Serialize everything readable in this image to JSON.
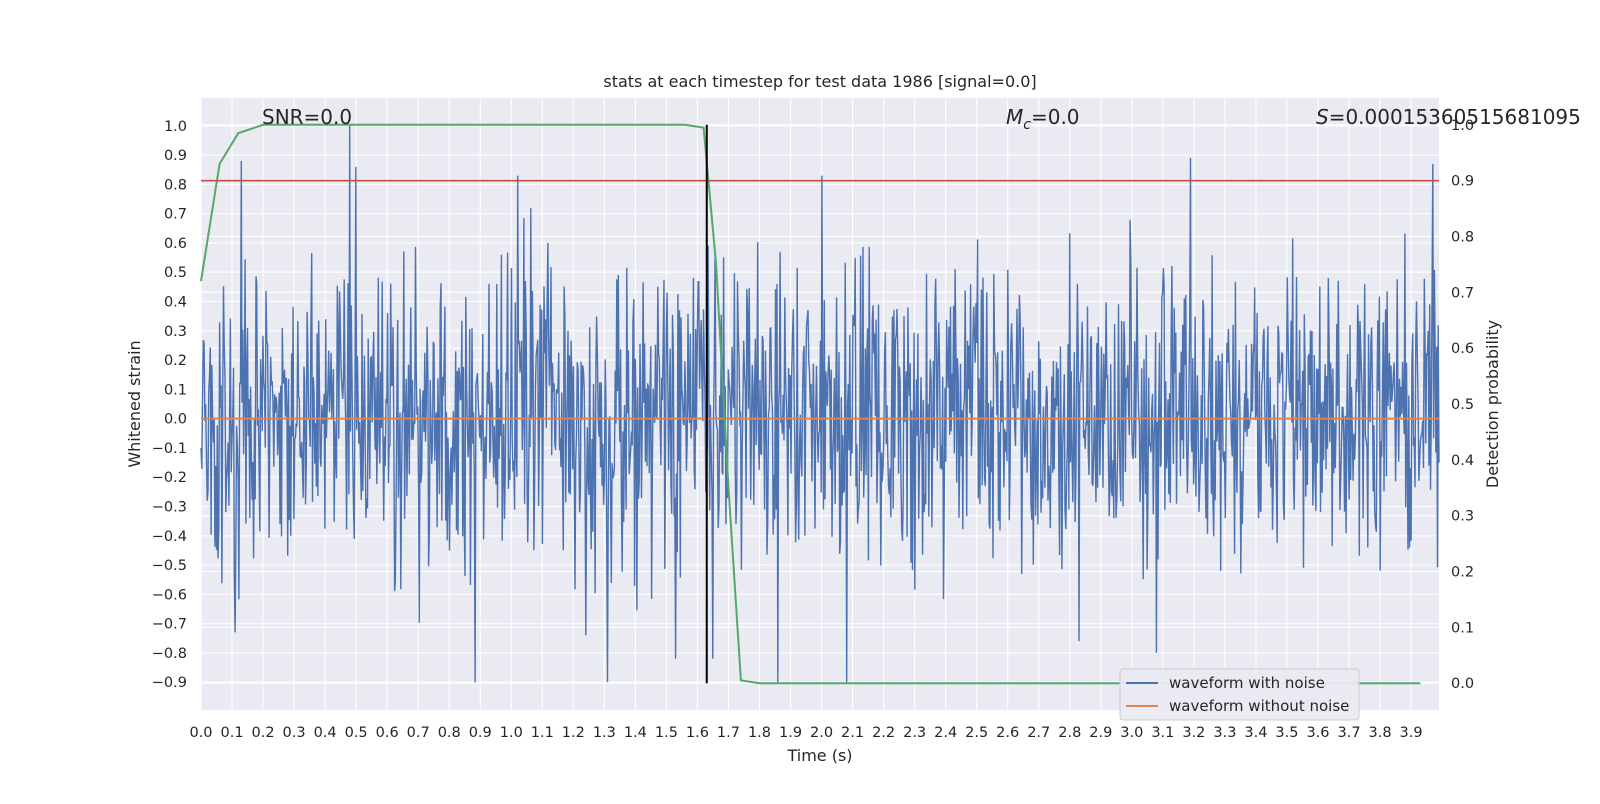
{
  "chart_data": {
    "type": "line",
    "title": "stats at each timestep for test data 1986 [signal=0.0]",
    "xlabel": "Time (s)",
    "ylabel": "Whitened strain",
    "y2label": "Detection probability",
    "xlim": [
      0.0,
      3.99
    ],
    "ylim": [
      -0.995,
      1.095
    ],
    "y2lim": [
      -0.048,
      1.048
    ],
    "x_ticks": [
      0.0,
      0.1,
      0.2,
      0.3,
      0.4,
      0.5,
      0.6,
      0.7,
      0.8,
      0.9,
      1.0,
      1.1,
      1.2,
      1.3,
      1.4,
      1.5,
      1.6,
      1.7,
      1.8,
      1.9,
      2.0,
      2.1,
      2.2,
      2.3,
      2.4,
      2.5,
      2.6,
      2.7,
      2.8,
      2.9,
      3.0,
      3.1,
      3.2,
      3.3,
      3.4,
      3.5,
      3.6,
      3.7,
      3.8,
      3.9
    ],
    "x_tick_labels": [
      "0.0",
      "0.1",
      "0.2",
      "0.3",
      "0.4",
      "0.5",
      "0.6",
      "0.7",
      "0.8",
      "0.9",
      "1.0",
      "1.1",
      "1.2",
      "1.3",
      "1.4",
      "1.5",
      "1.6",
      "1.7",
      "1.8",
      "1.9",
      "2.0",
      "2.1",
      "2.2",
      "2.3",
      "2.4",
      "2.5",
      "2.6",
      "2.7",
      "2.8",
      "2.9",
      "3.0",
      "3.1",
      "3.2",
      "3.3",
      "3.4",
      "3.5",
      "3.6",
      "3.7",
      "3.8",
      "3.9"
    ],
    "y_ticks": [
      1.0,
      0.9,
      0.8,
      0.7,
      0.6,
      0.5,
      0.4,
      0.3,
      0.2,
      0.1,
      0.0,
      -0.1,
      -0.2,
      -0.3,
      -0.4,
      -0.5,
      -0.6,
      -0.7,
      -0.8,
      -0.9
    ],
    "y_tick_labels": [
      "1.0",
      "0.9",
      "0.8",
      "0.7",
      "0.6",
      "0.5",
      "0.4",
      "0.3",
      "0.2",
      "0.1",
      "0.0",
      "−0.1",
      "−0.2",
      "−0.3",
      "−0.4",
      "−0.5",
      "−0.6",
      "−0.7",
      "−0.8",
      "−0.9"
    ],
    "y2_ticks": [
      1.0,
      0.9,
      0.8,
      0.7,
      0.6,
      0.5,
      0.4,
      0.3,
      0.2,
      0.1,
      0.0
    ],
    "y2_tick_labels": [
      "1.0",
      "0.9",
      "0.8",
      "0.7",
      "0.6",
      "0.5",
      "0.4",
      "0.3",
      "0.2",
      "0.1",
      "0.0"
    ],
    "grid": true,
    "legend_position": "bottom-right",
    "annotations": {
      "snr": "SNR=0.0",
      "mc_symbol": "M",
      "mc_subscript": "c",
      "mc_value": "=0.0",
      "s_symbol": "S",
      "s_value": "=0.00015360515681095"
    },
    "detection_threshold": 0.9,
    "peak_time": 1.63,
    "series": [
      {
        "name": "waveform with noise",
        "color": "#4c72b0",
        "axis": "left",
        "x_range": [
          0.0,
          3.99
        ],
        "sample_count": 1600,
        "approx_extremes": {
          "max": 1.0,
          "min": -0.9
        },
        "notable_peaks": [
          [
            0.48,
            1.0
          ],
          [
            0.5,
            0.86
          ],
          [
            0.13,
            0.88
          ],
          [
            1.02,
            0.83
          ],
          [
            2.0,
            0.83
          ],
          [
            3.19,
            0.89
          ],
          [
            3.97,
            0.87
          ]
        ],
        "notable_troughs": [
          [
            1.86,
            -0.9
          ],
          [
            2.08,
            -0.9
          ],
          [
            1.65,
            -0.82
          ],
          [
            1.53,
            -0.82
          ],
          [
            3.08,
            -0.8
          ],
          [
            0.11,
            -0.73
          ],
          [
            1.24,
            -0.74
          ]
        ]
      },
      {
        "name": "waveform without noise",
        "color": "#dd8452",
        "axis": "left",
        "x": [
          0.0,
          3.99
        ],
        "y": [
          0.0,
          0.0
        ]
      },
      {
        "color": "#55a868",
        "axis": "right",
        "x": [
          0.0,
          0.06,
          0.12,
          0.2,
          0.4,
          0.8,
          1.2,
          1.56,
          1.62,
          1.66,
          1.7,
          1.74,
          1.8,
          2.0,
          3.0,
          3.93
        ],
        "y": [
          0.72,
          0.93,
          0.985,
          1.0,
          1.0,
          1.0,
          1.0,
          1.0,
          0.995,
          0.75,
          0.35,
          0.005,
          0.0,
          0.0,
          0.0,
          0.0
        ]
      }
    ]
  }
}
